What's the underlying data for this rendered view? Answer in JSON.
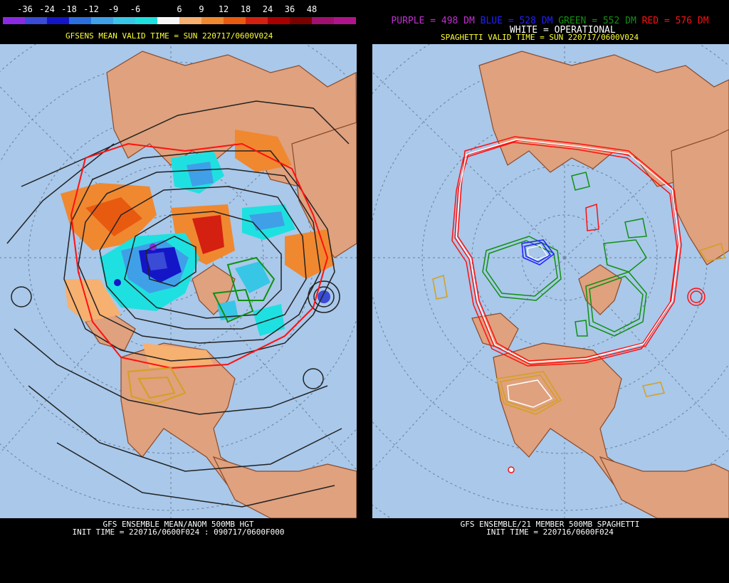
{
  "left": {
    "colorbar": {
      "labels": [
        "-36",
        "-24",
        "-18",
        "-12",
        "-9",
        "-6",
        "6",
        "9",
        "12",
        "18",
        "24",
        "36",
        "48"
      ],
      "colors": [
        "#8a2be2",
        "#3a4bd6",
        "#1515c8",
        "#2a6fe0",
        "#3fa0e8",
        "#38c6e6",
        "#1fe0e0",
        "#f6f6f6",
        "#f6b070",
        "#f08830",
        "#e85a10",
        "#d42010",
        "#a80000",
        "#7a0000",
        "#a0106e",
        "#b0148c"
      ]
    },
    "title": "GFSENS MEAN VALID TIME = SUN 220717/0600V024",
    "footer_line1": "GFS ENSEMBLE MEAN/ANOM 500MB HGT",
    "footer_line2": "INIT TIME = 220716/0600F024 : 090717/0600F000"
  },
  "right": {
    "legend": {
      "purple": "PURPLE = 498 DM",
      "blue": "BLUE = 528 DM",
      "green": "GREEN = 552 DM",
      "red": "RED = 576 DM",
      "white": "WHITE = OPERATIONAL",
      "colors": {
        "purple": "#c030d0",
        "blue": "#2020ff",
        "green": "#109010",
        "red": "#ff1010",
        "white": "#ffffff"
      }
    },
    "title": "SPAGHETTI VALID TIME = SUN 220717/0600V024",
    "footer_line1": "GFS ENSEMBLE/21 MEMBER 500MB SPAGHETTI",
    "footer_line2": "INIT TIME = 220716/0600F024"
  },
  "map_colors": {
    "ocean": "#a9c8ea",
    "land": "#dfa17e",
    "coast": "#8b4a2a"
  }
}
